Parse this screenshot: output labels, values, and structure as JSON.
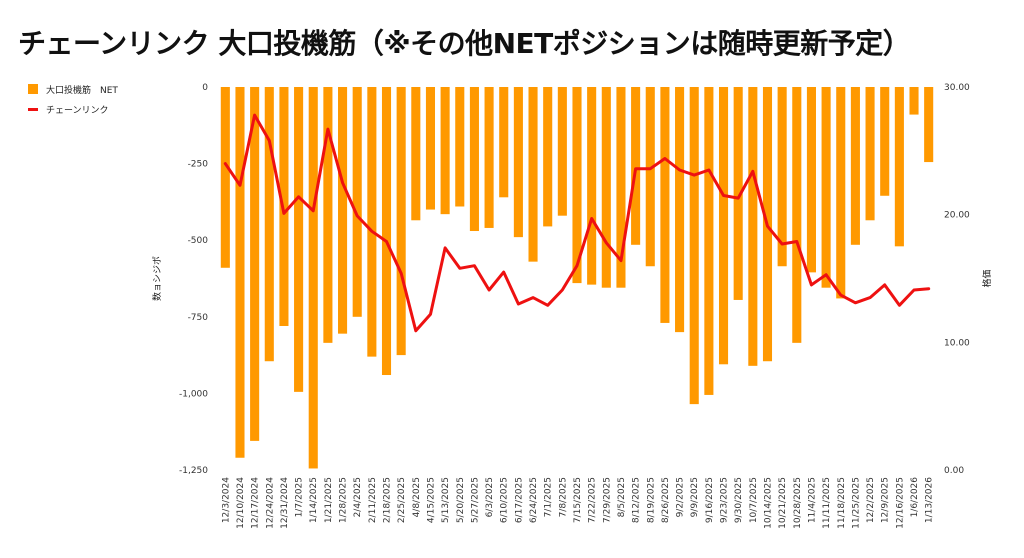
{
  "chart_data": {
    "type": "bar+line",
    "title": "チェーンリンク 大口投機筋（※その他NETポジションは随時更新予定）",
    "legend": [
      {
        "name": "大口投機筋　NET",
        "color": "#ff9900",
        "kind": "bar"
      },
      {
        "name": "チェーンリンク",
        "color": "#ee1111",
        "kind": "line"
      }
    ],
    "ylabel_left": "数ョシジポ",
    "ylabel_right": "格価",
    "ylim_left": [
      -1250,
      0
    ],
    "ylim_right": [
      0,
      30
    ],
    "yticks_left": [
      {
        "value": 0,
        "label": "0"
      },
      {
        "value": -250,
        "label": "-250"
      },
      {
        "value": -500,
        "label": "-500"
      },
      {
        "value": -750,
        "label": "-750"
      },
      {
        "value": -1000,
        "label": "-1,000"
      },
      {
        "value": -1250,
        "label": "-1,250"
      }
    ],
    "yticks_right": [
      {
        "value": 30,
        "label": "30.00"
      },
      {
        "value": 20,
        "label": "20.00"
      },
      {
        "value": 10,
        "label": "10.00"
      },
      {
        "value": 0,
        "label": "0.00"
      }
    ],
    "categories": [
      "12/3/2024",
      "12/10/2024",
      "12/17/2024",
      "12/24/2024",
      "12/31/2024",
      "1/7/2025",
      "1/14/2025",
      "1/21/2025",
      "1/28/2025",
      "2/4/2025",
      "2/11/2025",
      "2/18/2025",
      "2/25/2025",
      "4/8/2025",
      "4/15/2025",
      "5/13/2025",
      "5/20/2025",
      "5/27/2025",
      "6/3/2025",
      "6/10/2025",
      "6/17/2025",
      "6/24/2025",
      "7/1/2025",
      "7/8/2025",
      "7/15/2025",
      "7/22/2025",
      "7/29/2025",
      "8/5/2025",
      "8/12/2025",
      "8/19/2025",
      "8/26/2025",
      "9/2/2025",
      "9/9/2025",
      "9/16/2025",
      "9/23/2025",
      "9/30/2025",
      "10/7/2025",
      "10/14/2025",
      "10/21/2025",
      "10/28/2025",
      "11/4/2025",
      "11/11/2025",
      "11/18/2025",
      "11/25/2025",
      "12/2/2025",
      "12/9/2025",
      "12/16/2025",
      "1/6/2026",
      "1/13/2026"
    ],
    "series": [
      {
        "name": "大口投機筋　NET",
        "type": "bar",
        "values": [
          -590,
          -1210,
          -1155,
          -895,
          -780,
          -995,
          -1245,
          -835,
          -805,
          -750,
          -880,
          -940,
          -875,
          -435,
          -400,
          -415,
          -390,
          -470,
          -460,
          -360,
          -490,
          -570,
          -455,
          -420,
          -640,
          -645,
          -655,
          -655,
          -515,
          -585,
          -770,
          -800,
          -1035,
          -1005,
          -905,
          -695,
          -910,
          -895,
          -585,
          -835,
          -605,
          -655,
          -690,
          -515,
          -435,
          -355,
          -520,
          -90,
          -245
        ]
      },
      {
        "name": "チェーンリンク",
        "type": "line",
        "values": [
          24.0,
          22.3,
          27.8,
          25.8,
          20.1,
          21.4,
          20.3,
          26.7,
          22.5,
          19.9,
          18.7,
          17.9,
          15.4,
          10.9,
          12.2,
          17.4,
          15.8,
          16.0,
          14.1,
          15.5,
          13.0,
          13.5,
          12.9,
          14.1,
          16.0,
          19.7,
          17.8,
          16.4,
          23.6,
          23.6,
          24.4,
          23.5,
          23.1,
          23.5,
          21.5,
          21.3,
          23.4,
          19.1,
          17.7,
          17.9,
          14.5,
          15.3,
          13.7,
          13.1,
          13.5,
          14.5,
          12.9,
          14.1,
          14.2
        ]
      }
    ]
  }
}
